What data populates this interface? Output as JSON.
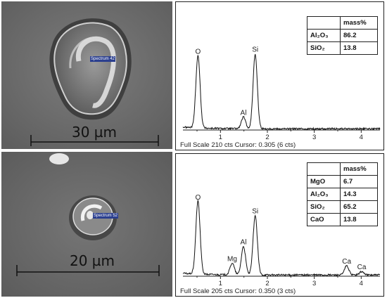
{
  "figure": {
    "panel_top": {
      "sem": {
        "scale_label": "30 µm",
        "spectrum_label": "Spectrum 42"
      },
      "spectrum": {
        "footer": "Full Scale 210 cts Cursor: 0.305  (6 cts)",
        "peaks": [
          "O",
          "Al",
          "Si"
        ],
        "x_ticks": [
          "1",
          "2",
          "3",
          "4"
        ],
        "table": {
          "header": "mass%",
          "rows": [
            {
              "formula": "Al₂O₃",
              "value": "86.2"
            },
            {
              "formula": "SiO₂",
              "value": "13.8"
            }
          ]
        }
      }
    },
    "panel_bottom": {
      "sem": {
        "scale_label": "20 µm",
        "spectrum_label": "Spectrum 52"
      },
      "spectrum": {
        "footer": "Full Scale 205 cts Cursor: 0.350  (3 cts)",
        "peaks": [
          "O",
          "Mg",
          "Al",
          "Si",
          "Ca",
          "Ca"
        ],
        "x_ticks": [
          "1",
          "2",
          "3",
          "4"
        ],
        "table": {
          "header": "mass%",
          "rows": [
            {
              "formula": "MgO",
              "value": "6.7"
            },
            {
              "formula": "Al₂O₃",
              "value": "14.3"
            },
            {
              "formula": "SiO₂",
              "value": "65.2"
            },
            {
              "formula": "CaO",
              "value": "13.8"
            }
          ]
        }
      }
    }
  },
  "chart_data": [
    {
      "type": "line",
      "xlabel": "",
      "ylabel": "",
      "xlim": [
        0.2,
        4.4
      ],
      "ylim": [
        0,
        210
      ],
      "peaks": [
        {
          "label": "O",
          "x": 0.52,
          "y": 175
        },
        {
          "label": "Al",
          "x": 1.49,
          "y": 28
        },
        {
          "label": "Si",
          "x": 1.74,
          "y": 180
        }
      ]
    },
    {
      "type": "line",
      "xlabel": "",
      "ylabel": "",
      "xlim": [
        0.2,
        4.4
      ],
      "ylim": [
        0,
        205
      ],
      "peaks": [
        {
          "label": "O",
          "x": 0.52,
          "y": 175
        },
        {
          "label": "Mg",
          "x": 1.25,
          "y": 28
        },
        {
          "label": "Al",
          "x": 1.49,
          "y": 68
        },
        {
          "label": "Si",
          "x": 1.74,
          "y": 142
        },
        {
          "label": "Ca",
          "x": 3.69,
          "y": 22
        },
        {
          "label": "Ca",
          "x": 4.01,
          "y": 8
        }
      ]
    }
  ]
}
